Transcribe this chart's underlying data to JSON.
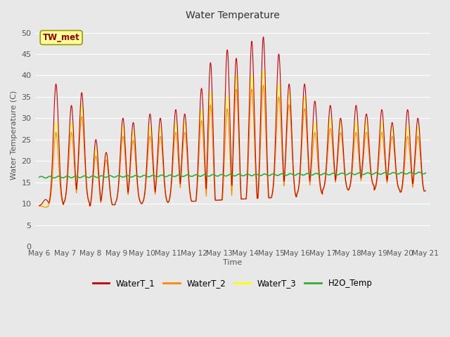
{
  "title": "Water Temperature",
  "ylabel": "Water Temperature (C)",
  "xlabel": "Time",
  "annotation": "TW_met",
  "xlim_days": [
    5.83,
    21.17
  ],
  "ylim": [
    0,
    52
  ],
  "yticks": [
    0,
    5,
    10,
    15,
    20,
    25,
    30,
    35,
    40,
    45,
    50
  ],
  "xtick_labels": [
    "May 6",
    "May 7",
    "May 8",
    "May 9",
    "May 10",
    "May 11",
    "May 12",
    "May 13",
    "May 14",
    "May 15",
    "May 16",
    "May 17",
    "May 18",
    "May 19",
    "May 20",
    "May 21"
  ],
  "xtick_positions": [
    6,
    7,
    8,
    9,
    10,
    11,
    12,
    13,
    14,
    15,
    16,
    17,
    18,
    19,
    20,
    21
  ],
  "bg_color": "#e8e8e8",
  "plot_bg_color": "#e8e8e8",
  "grid_color": "#ffffff",
  "line_colors": {
    "WaterT_1": "#cc0000",
    "WaterT_2": "#ff8800",
    "WaterT_3": "#ffff00",
    "H2O_Temp": "#33aa33"
  },
  "legend_labels": [
    "WaterT_1",
    "WaterT_2",
    "WaterT_3",
    "H2O_Temp"
  ],
  "peaks_per_day": 2,
  "h2o_start": 16.2,
  "h2o_end": 17.2
}
